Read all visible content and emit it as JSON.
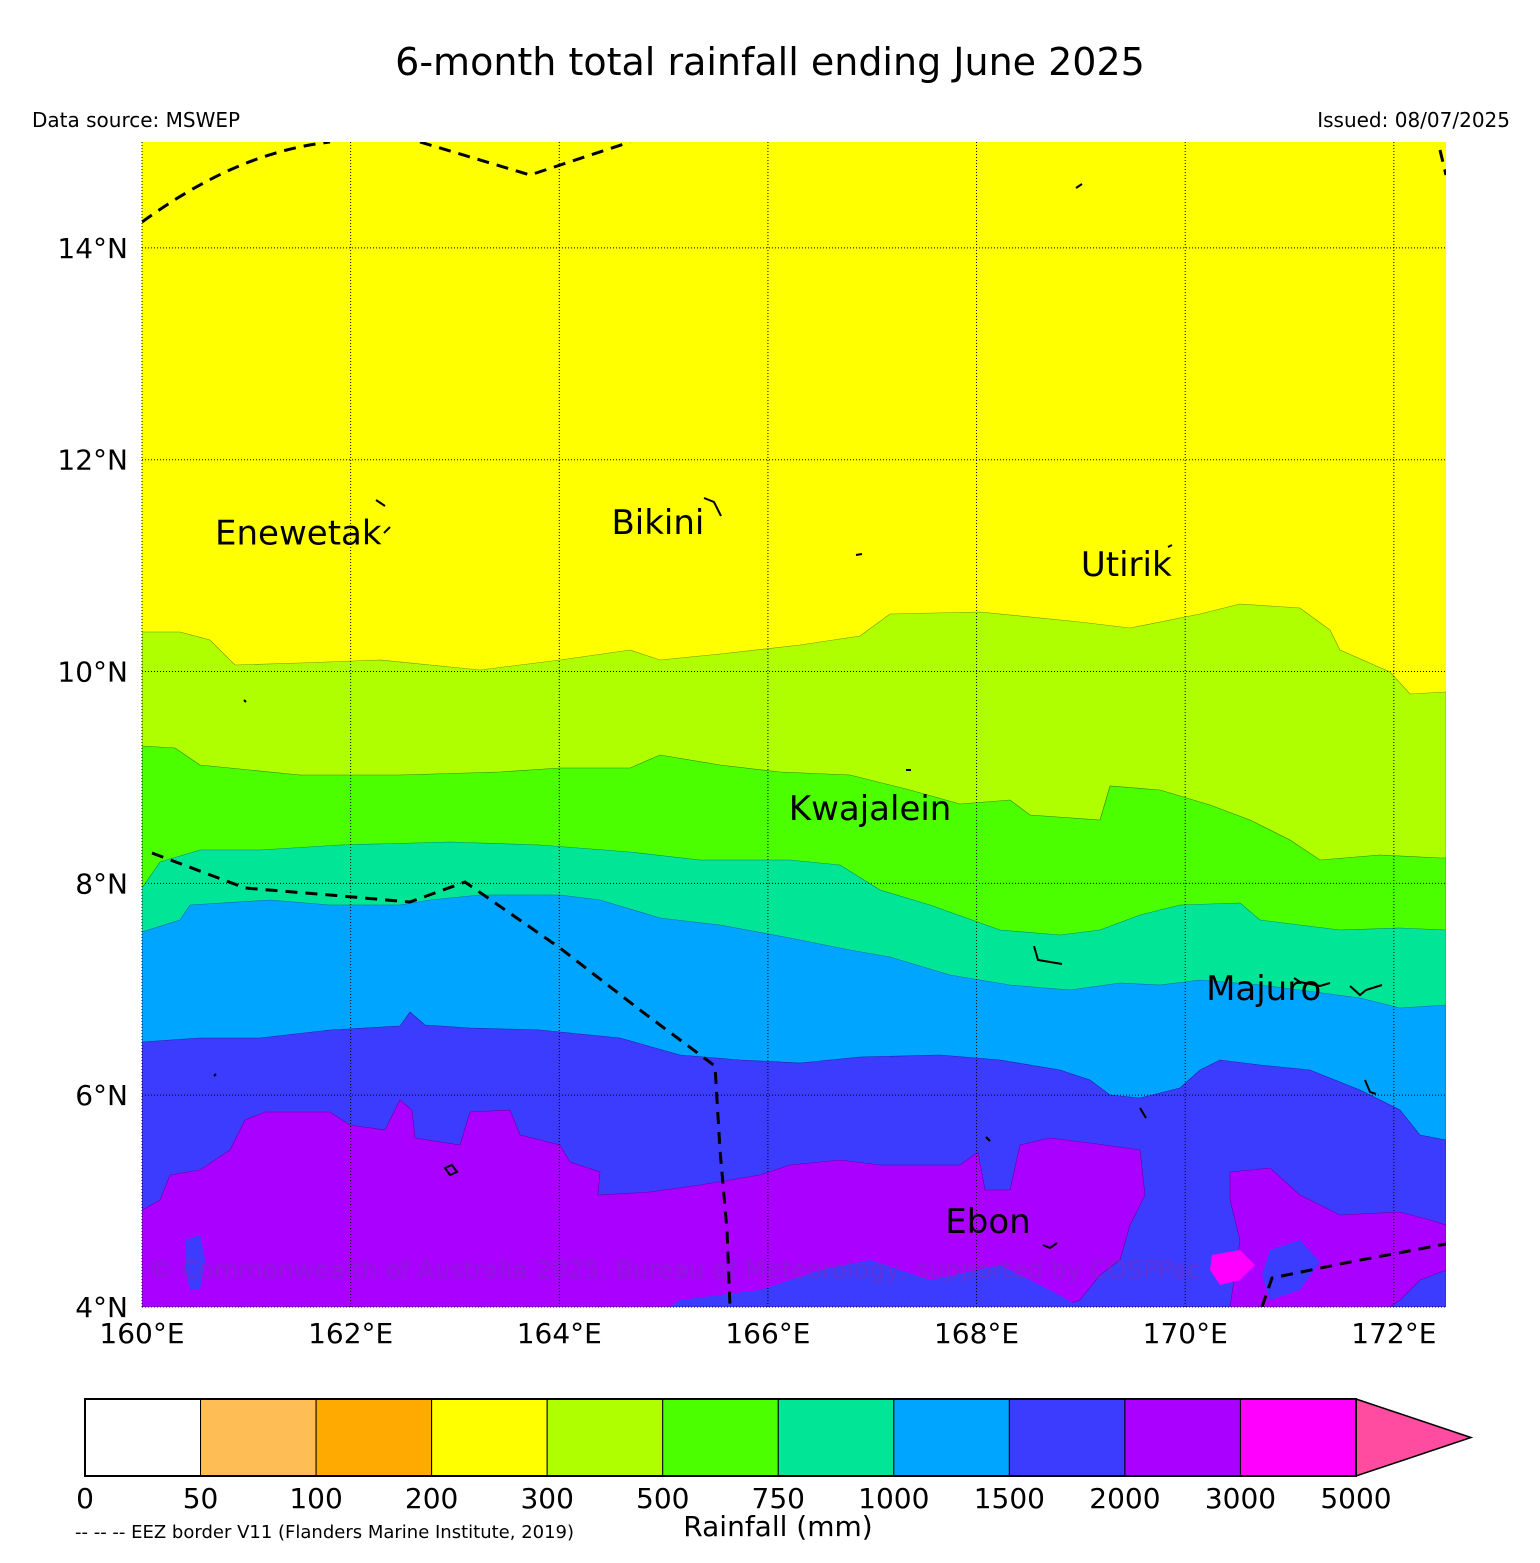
{
  "header": {
    "title": "6-month total rainfall ending June 2025",
    "source": "Data source: MSWEP",
    "issued": "Issued: 08/07/2025"
  },
  "map": {
    "lon_range": [
      160,
      172.5
    ],
    "lat_range": [
      4,
      15
    ],
    "lon_ticks": [
      {
        "value": 160,
        "label": "160°E"
      },
      {
        "value": 162,
        "label": "162°E"
      },
      {
        "value": 164,
        "label": "164°E"
      },
      {
        "value": 166,
        "label": "166°E"
      },
      {
        "value": 168,
        "label": "168°E"
      },
      {
        "value": 170,
        "label": "170°E"
      },
      {
        "value": 172,
        "label": "172°E"
      }
    ],
    "lat_ticks": [
      {
        "value": 4,
        "label": "4°N"
      },
      {
        "value": 6,
        "label": "6°N"
      },
      {
        "value": 8,
        "label": "8°N"
      },
      {
        "value": 10,
        "label": "10°N"
      },
      {
        "value": 12,
        "label": "12°N"
      },
      {
        "value": 14,
        "label": "14°N"
      }
    ],
    "places": [
      {
        "name": "Enewetak",
        "lon": 160.7,
        "lat": 11.2
      },
      {
        "name": "Bikini",
        "lon": 164.5,
        "lat": 11.3
      },
      {
        "name": "Utirik",
        "lon": 169.0,
        "lat": 10.9
      },
      {
        "name": "Kwajalein",
        "lon": 166.2,
        "lat": 8.6
      },
      {
        "name": "Majuro",
        "lon": 170.2,
        "lat": 6.9
      },
      {
        "name": "Ebon",
        "lon": 167.7,
        "lat": 4.7
      }
    ],
    "copyright": "© Commonwealth of Australia 2025, Bureau of Meteorology, supported by COSPPac",
    "eez_note": "-- -- -- EEZ border V11 (Flanders Marine Institute, 2019)",
    "rainfall_bands_mm": [
      {
        "range": "200-300",
        "color": "#ffff00"
      },
      {
        "range": "300-500",
        "color": "#b0ff00"
      },
      {
        "range": "500-750",
        "color": "#4cff00"
      },
      {
        "range": "750-1000",
        "color": "#00e696"
      },
      {
        "range": "1000-1500",
        "color": "#00a5ff"
      },
      {
        "range": "1500-2000",
        "color": "#3c3cff"
      },
      {
        "range": "2000-3000",
        "color": "#aa00ff"
      }
    ]
  },
  "legend": {
    "title": "Rainfall (mm)",
    "tick_labels": [
      "0",
      "50",
      "100",
      "200",
      "300",
      "500",
      "750",
      "1000",
      "1500",
      "2000",
      "3000",
      "5000"
    ],
    "colors": [
      "#ffffff",
      "#ffbe55",
      "#ffaa00",
      "#ffff00",
      "#b0ff00",
      "#4cff00",
      "#00e696",
      "#00a5ff",
      "#3c3cff",
      "#aa00ff",
      "#ff00ff"
    ],
    "extend_color": "#ff4ba0"
  }
}
